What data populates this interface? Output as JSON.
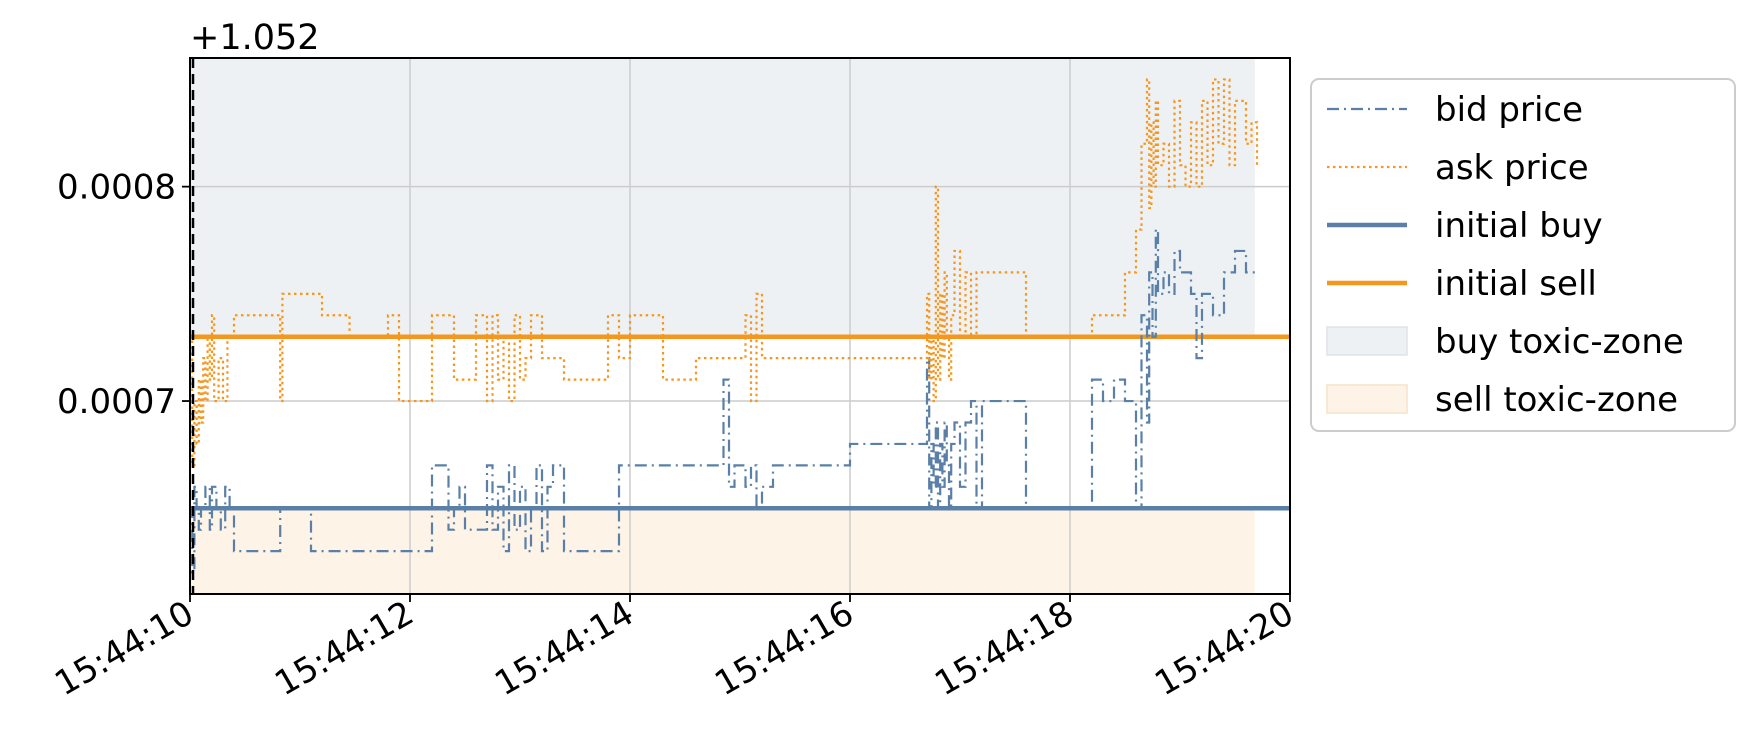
{
  "chart_data": {
    "type": "line",
    "title": "",
    "xlabel": "",
    "ylabel": "",
    "y_offset_label": "+1.052",
    "x_tick_labels": [
      "15:44:10",
      "15:44:12",
      "15:44:14",
      "15:44:16",
      "15:44:18",
      "15:44:20"
    ],
    "x_tick_values": [
      0,
      2,
      4,
      6,
      8,
      10
    ],
    "y_tick_labels": [
      "0.0007",
      "0.0008"
    ],
    "y_tick_values": [
      0.0007,
      0.0008
    ],
    "xlim": [
      0,
      10
    ],
    "ylim": [
      0.00061,
      0.00086
    ],
    "x_units": "seconds after 15:44:10",
    "grid": true,
    "legend_position": "outside-right",
    "colors": {
      "bid": "#5a80a8",
      "ask": "#f5961f",
      "buy_zone": "#edf1f3",
      "sell_zone": "#fdf3e7"
    },
    "series": [
      {
        "name": "bid price",
        "style": "dashdot",
        "color": "#5a80a8",
        "x": [
          0.0,
          0.02,
          0.04,
          0.06,
          0.08,
          0.1,
          0.14,
          0.18,
          0.2,
          0.24,
          0.28,
          0.32,
          0.36,
          0.4,
          0.8,
          0.82,
          1.1,
          1.4,
          1.6,
          1.9,
          2.2,
          2.35,
          2.4,
          2.45,
          2.5,
          2.7,
          2.75,
          2.8,
          2.85,
          2.9,
          2.95,
          3.0,
          3.05,
          3.1,
          3.15,
          3.2,
          3.25,
          3.3,
          3.4,
          3.45,
          3.9,
          4.3,
          4.6,
          4.85,
          4.9,
          4.95,
          5.05,
          5.1,
          5.15,
          5.2,
          5.3,
          5.5,
          5.7,
          6.0,
          6.3,
          6.7,
          6.72,
          6.74,
          6.76,
          6.78,
          6.8,
          6.82,
          6.84,
          6.86,
          6.88,
          6.9,
          6.92,
          6.95,
          7.0,
          7.05,
          7.1,
          7.15,
          7.2,
          7.5,
          7.6,
          8.2,
          8.3,
          8.4,
          8.5,
          8.6,
          8.65,
          8.7,
          8.72,
          8.75,
          8.78,
          8.8,
          8.85,
          8.9,
          8.95,
          9.0,
          9.1,
          9.15,
          9.2,
          9.3,
          9.4,
          9.5,
          9.6,
          9.7
        ],
        "values": [
          0.00065,
          0.00062,
          0.00066,
          0.00065,
          0.00064,
          0.00065,
          0.00066,
          0.00064,
          0.00066,
          0.00065,
          0.00064,
          0.00066,
          0.00065,
          0.00063,
          0.00063,
          0.00065,
          0.00063,
          0.00063,
          0.00063,
          0.00063,
          0.00067,
          0.00064,
          0.00065,
          0.00066,
          0.00064,
          0.00067,
          0.00064,
          0.00066,
          0.00063,
          0.00067,
          0.00064,
          0.00066,
          0.00063,
          0.00065,
          0.00067,
          0.00063,
          0.00066,
          0.00067,
          0.00063,
          0.00063,
          0.00067,
          0.00067,
          0.00067,
          0.00071,
          0.00066,
          0.00067,
          0.00066,
          0.00067,
          0.00065,
          0.00066,
          0.00067,
          0.00067,
          0.00067,
          0.00068,
          0.00068,
          0.00072,
          0.00065,
          0.00068,
          0.00066,
          0.00069,
          0.00065,
          0.00068,
          0.00066,
          0.00069,
          0.00067,
          0.00065,
          0.00068,
          0.00069,
          0.00066,
          0.00069,
          0.0007,
          0.00065,
          0.0007,
          0.0007,
          0.00065,
          0.00071,
          0.0007,
          0.00071,
          0.0007,
          0.00065,
          0.00074,
          0.00069,
          0.00076,
          0.00073,
          0.00078,
          0.00075,
          0.00076,
          0.00075,
          0.00077,
          0.00076,
          0.00075,
          0.00072,
          0.00075,
          0.00074,
          0.00076,
          0.00077,
          0.00076,
          0.00076
        ]
      },
      {
        "name": "ask price",
        "style": "dotted",
        "color": "#f5961f",
        "x": [
          0.0,
          0.02,
          0.04,
          0.06,
          0.08,
          0.1,
          0.12,
          0.14,
          0.16,
          0.18,
          0.2,
          0.22,
          0.26,
          0.3,
          0.34,
          0.4,
          0.8,
          0.82,
          0.84,
          1.2,
          1.45,
          1.8,
          1.9,
          2.2,
          2.4,
          2.6,
          2.7,
          2.75,
          2.8,
          2.85,
          2.9,
          2.95,
          3.0,
          3.05,
          3.1,
          3.2,
          3.4,
          3.8,
          3.9,
          4.0,
          4.3,
          4.6,
          4.9,
          5.05,
          5.1,
          5.15,
          5.2,
          5.3,
          5.7,
          6.0,
          6.3,
          6.7,
          6.72,
          6.74,
          6.76,
          6.78,
          6.8,
          6.82,
          6.84,
          6.86,
          6.88,
          6.9,
          6.92,
          6.95,
          7.0,
          7.05,
          7.1,
          7.15,
          7.2,
          7.6,
          8.2,
          8.5,
          8.6,
          8.65,
          8.7,
          8.72,
          8.74,
          8.76,
          8.78,
          8.8,
          8.85,
          8.9,
          8.95,
          9.0,
          9.05,
          9.1,
          9.15,
          9.2,
          9.25,
          9.3,
          9.35,
          9.4,
          9.45,
          9.5,
          9.6,
          9.65,
          9.7
        ],
        "values": [
          0.00073,
          0.00067,
          0.0007,
          0.00068,
          0.00071,
          0.00069,
          0.00072,
          0.0007,
          0.00073,
          0.00071,
          0.00074,
          0.0007,
          0.00072,
          0.0007,
          0.00073,
          0.00074,
          0.00074,
          0.0007,
          0.00075,
          0.00074,
          0.00073,
          0.00074,
          0.0007,
          0.00074,
          0.00071,
          0.00074,
          0.0007,
          0.00074,
          0.00071,
          0.00073,
          0.0007,
          0.00074,
          0.00071,
          0.00072,
          0.00074,
          0.00072,
          0.00071,
          0.00074,
          0.00072,
          0.00074,
          0.00071,
          0.00072,
          0.00072,
          0.00074,
          0.0007,
          0.00075,
          0.00072,
          0.00072,
          0.00072,
          0.00072,
          0.00072,
          0.00075,
          0.00071,
          0.00073,
          0.0007,
          0.0008,
          0.00071,
          0.00075,
          0.00072,
          0.00076,
          0.00073,
          0.00071,
          0.00074,
          0.00077,
          0.00073,
          0.00076,
          0.00073,
          0.00076,
          0.00076,
          0.00073,
          0.00074,
          0.00076,
          0.00078,
          0.00082,
          0.00085,
          0.00079,
          0.00083,
          0.0008,
          0.00084,
          0.00081,
          0.00082,
          0.0008,
          0.00084,
          0.00081,
          0.0008,
          0.00083,
          0.0008,
          0.00084,
          0.00081,
          0.00085,
          0.00082,
          0.00085,
          0.00081,
          0.00084,
          0.00082,
          0.00083,
          0.00081
        ]
      },
      {
        "name": "initial buy",
        "style": "solid",
        "color": "#5a80a8",
        "x": [
          0,
          10
        ],
        "values": [
          0.00065,
          0.00065
        ]
      },
      {
        "name": "initial sell",
        "style": "solid",
        "color": "#f5961f",
        "x": [
          0,
          10
        ],
        "values": [
          0.00073,
          0.00073
        ]
      }
    ],
    "zones": [
      {
        "name": "buy toxic-zone",
        "color": "#edf1f3",
        "x": [
          0,
          9.68
        ],
        "y": [
          0.00073,
          0.00086
        ]
      },
      {
        "name": "sell toxic-zone",
        "color": "#fdf3e7",
        "x": [
          0,
          9.68
        ],
        "y": [
          0.00061,
          0.00065
        ]
      }
    ],
    "legend": [
      {
        "label": "bid price",
        "kind": "line",
        "style": "dashdot",
        "color": "#5a80a8"
      },
      {
        "label": "ask price",
        "kind": "line",
        "style": "dotted",
        "color": "#f5961f"
      },
      {
        "label": "initial buy",
        "kind": "line",
        "style": "solid",
        "color": "#5a80a8"
      },
      {
        "label": "initial sell",
        "kind": "line",
        "style": "solid",
        "color": "#f5961f"
      },
      {
        "label": "buy toxic-zone",
        "kind": "patch",
        "color": "#edf1f3"
      },
      {
        "label": "sell toxic-zone",
        "kind": "patch",
        "color": "#fdf3e7"
      }
    ]
  }
}
